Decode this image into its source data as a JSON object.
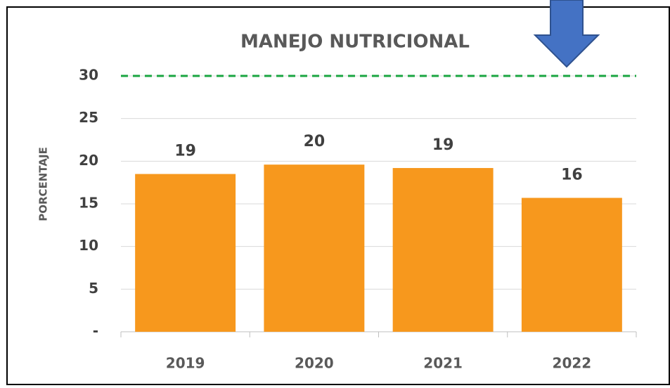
{
  "chart_data": {
    "type": "bar",
    "title": "MANEJO NUTRICIONAL",
    "y_label": "PORCENTAJE",
    "categories": [
      "2019",
      "2020",
      "2021",
      "2022"
    ],
    "values": [
      18.5,
      19.6,
      19.2,
      15.7
    ],
    "value_labels": [
      "19",
      "20",
      "19",
      "16"
    ],
    "color": "#f7981d",
    "ylim": [
      0,
      30
    ],
    "yticks": [
      {
        "value": 0,
        "label": "-"
      },
      5,
      10,
      15,
      20,
      25,
      30
    ],
    "grid": true,
    "reference_line": {
      "value": 30,
      "color": "#1aa541"
    }
  }
}
